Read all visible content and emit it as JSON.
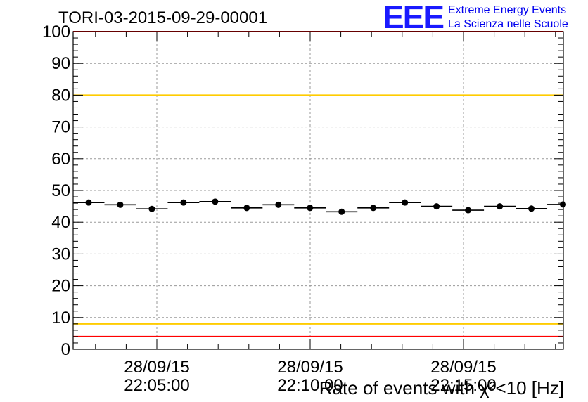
{
  "chart_data": {
    "type": "scatter",
    "title": "TORI-03-2015-09-29-00001",
    "xlabel": "Rate of events with χ²<10 [Hz]",
    "ylabel": "",
    "ylim": [
      0,
      100
    ],
    "yticks": [
      "0",
      "10",
      "20",
      "30",
      "40",
      "50",
      "60",
      "70",
      "80",
      "90",
      "100"
    ],
    "xticks": [
      {
        "date": "28/09/15",
        "time": "22:05:00"
      },
      {
        "date": "28/09/15",
        "time": "22:10:00"
      },
      {
        "date": "28/09/15",
        "time": "22:15:00"
      }
    ],
    "grid": true,
    "thresholds": [
      {
        "value": 100,
        "color": "#ff0000"
      },
      {
        "value": 80,
        "color": "#ffcc00"
      },
      {
        "value": 8,
        "color": "#ffcc00"
      },
      {
        "value": 4,
        "color": "#ff0000"
      }
    ],
    "series": [
      {
        "color": "#000000",
        "values": [
          46.2,
          45.5,
          44.2,
          46.2,
          46.5,
          44.5,
          45.5,
          44.5,
          43.3,
          44.5,
          46.2,
          45.0,
          43.8,
          45.0,
          44.3,
          45.6
        ]
      }
    ]
  },
  "logo": {
    "mark": "EEE",
    "line1": "Extreme Energy Events",
    "line2": "La Scienza nelle Scuole"
  }
}
